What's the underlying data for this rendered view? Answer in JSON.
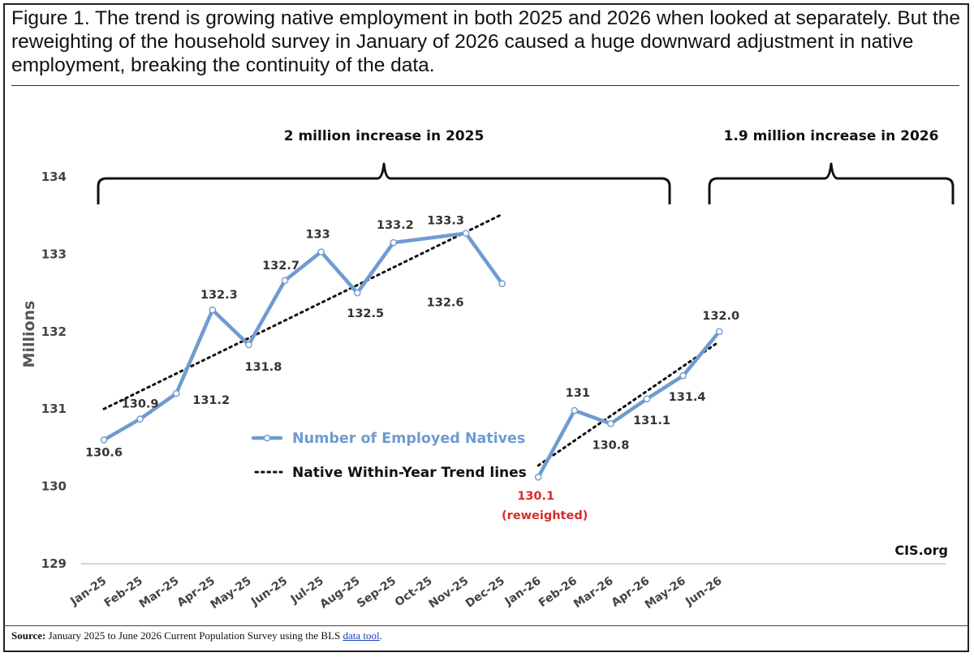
{
  "title": "Figure 1. The trend is growing native employment in both 2025 and 2026 when looked at separately. But the reweighting of the household survey in January of 2026 caused a huge downward adjustment in native employment, breaking the continuity of the data.",
  "source": {
    "label": "Source:",
    "text": " January 2025 to June 2026 Current Population Survey using the BLS ",
    "link": "data tool",
    "end": "."
  },
  "credit": "CIS.org",
  "colors": {
    "series": "#6f9bd1",
    "trend": "#111111",
    "highlight": "#d92b2b"
  },
  "chart_data": {
    "type": "line",
    "ylabel": "Millions",
    "ylim": [
      129,
      134
    ],
    "yticks": [
      "129",
      "130",
      "131",
      "132",
      "133",
      "134"
    ],
    "grid": false,
    "categories": [
      "Jan-25",
      "Feb-25",
      "Mar-25",
      "Apr-25",
      "May-25",
      "Jun-25",
      "Jul-25",
      "Aug-25",
      "Sep-25",
      "Oct-25",
      "Nov-25",
      "Dec-25",
      "Jan-26",
      "Feb-26",
      "Mar-26",
      "Apr-26",
      "May-26",
      "Jun-26"
    ],
    "series": [
      {
        "name": "Number of Employed Natives",
        "values": [
          130.6,
          130.87,
          131.2,
          132.28,
          131.83,
          132.66,
          133.03,
          132.5,
          133.15,
          null,
          133.27,
          132.62,
          130.12,
          130.98,
          130.81,
          131.13,
          131.43,
          132.0
        ],
        "labels": [
          "130.6",
          "130.9",
          "131.2",
          "132.3",
          "131.8",
          "132.7",
          "133",
          "132.5",
          "133.2",
          "",
          "133.3",
          "132.6",
          "130.1",
          "131",
          "130.8",
          "131.1",
          "131.4",
          "132.0"
        ]
      },
      {
        "name": "Native Within-Year Trend lines",
        "segments": [
          {
            "x": [
              "Jan-25",
              "Dec-25"
            ],
            "y": [
              131.0,
              133.5
            ]
          },
          {
            "x": [
              "Jan-26",
              "Jun-26"
            ],
            "y": [
              130.27,
              131.85
            ]
          }
        ]
      }
    ],
    "reweighted_note": "(reweighted)",
    "annotations": [
      {
        "text": "2 million increase in 2025",
        "span": [
          "Jan-25",
          "Dec-25"
        ]
      },
      {
        "text": "1.9 million increase in 2026",
        "span": [
          "Feb-26",
          "Jun-26"
        ]
      }
    ]
  }
}
